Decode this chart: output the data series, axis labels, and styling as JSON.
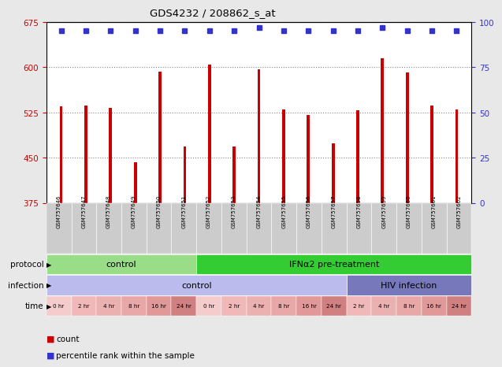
{
  "title": "GDS4232 / 208862_s_at",
  "samples": [
    "GSM757646",
    "GSM757647",
    "GSM757648",
    "GSM757649",
    "GSM757650",
    "GSM757651",
    "GSM757652",
    "GSM757653",
    "GSM757654",
    "GSM757655",
    "GSM757656",
    "GSM757657",
    "GSM757658",
    "GSM757659",
    "GSM757660",
    "GSM757661",
    "GSM757662"
  ],
  "counts": [
    535,
    537,
    533,
    443,
    593,
    468,
    605,
    468,
    597,
    530,
    521,
    474,
    528,
    615,
    591,
    537,
    530
  ],
  "percentile_ranks": [
    95,
    95,
    95,
    95,
    95,
    95,
    95,
    95,
    97,
    95,
    95,
    95,
    95,
    97,
    95,
    95,
    95
  ],
  "ylim_left": [
    375,
    675
  ],
  "yticks_left": [
    375,
    450,
    525,
    600,
    675
  ],
  "ylim_right": [
    0,
    100
  ],
  "yticks_right": [
    0,
    25,
    50,
    75,
    100
  ],
  "bar_color": "#cc0000",
  "dot_color": "#3333cc",
  "background_color": "#e8e8e8",
  "plot_bg": "#ffffff",
  "grid_color": "#888888",
  "label_area_color": "#cccccc",
  "protocol_groups": [
    {
      "label": "control",
      "start": 0,
      "end": 6,
      "color": "#99dd88"
    },
    {
      "label": "IFNα2 pre-treatment",
      "start": 6,
      "end": 17,
      "color": "#33cc33"
    }
  ],
  "infection_groups": [
    {
      "label": "control",
      "start": 0,
      "end": 12,
      "color": "#bbbbee"
    },
    {
      "label": "HIV infection",
      "start": 12,
      "end": 17,
      "color": "#7777bb"
    }
  ],
  "time_labels": [
    "0 hr",
    "2 hr",
    "4 hr",
    "8 hr",
    "16 hr",
    "24 hr",
    "0 hr",
    "2 hr",
    "4 hr",
    "8 hr",
    "16 hr",
    "24 hr",
    "2 hr",
    "4 hr",
    "8 hr",
    "16 hr",
    "24 hr"
  ],
  "time_colors": [
    "#f5cccc",
    "#f0b8b8",
    "#ebb0b0",
    "#e8a8a8",
    "#e09898",
    "#d08080",
    "#f5cccc",
    "#f0b8b8",
    "#ebb0b0",
    "#e8a8a8",
    "#e09898",
    "#d08080",
    "#f0b8b8",
    "#ebb0b0",
    "#e8a8a8",
    "#e09898",
    "#d08080"
  ]
}
